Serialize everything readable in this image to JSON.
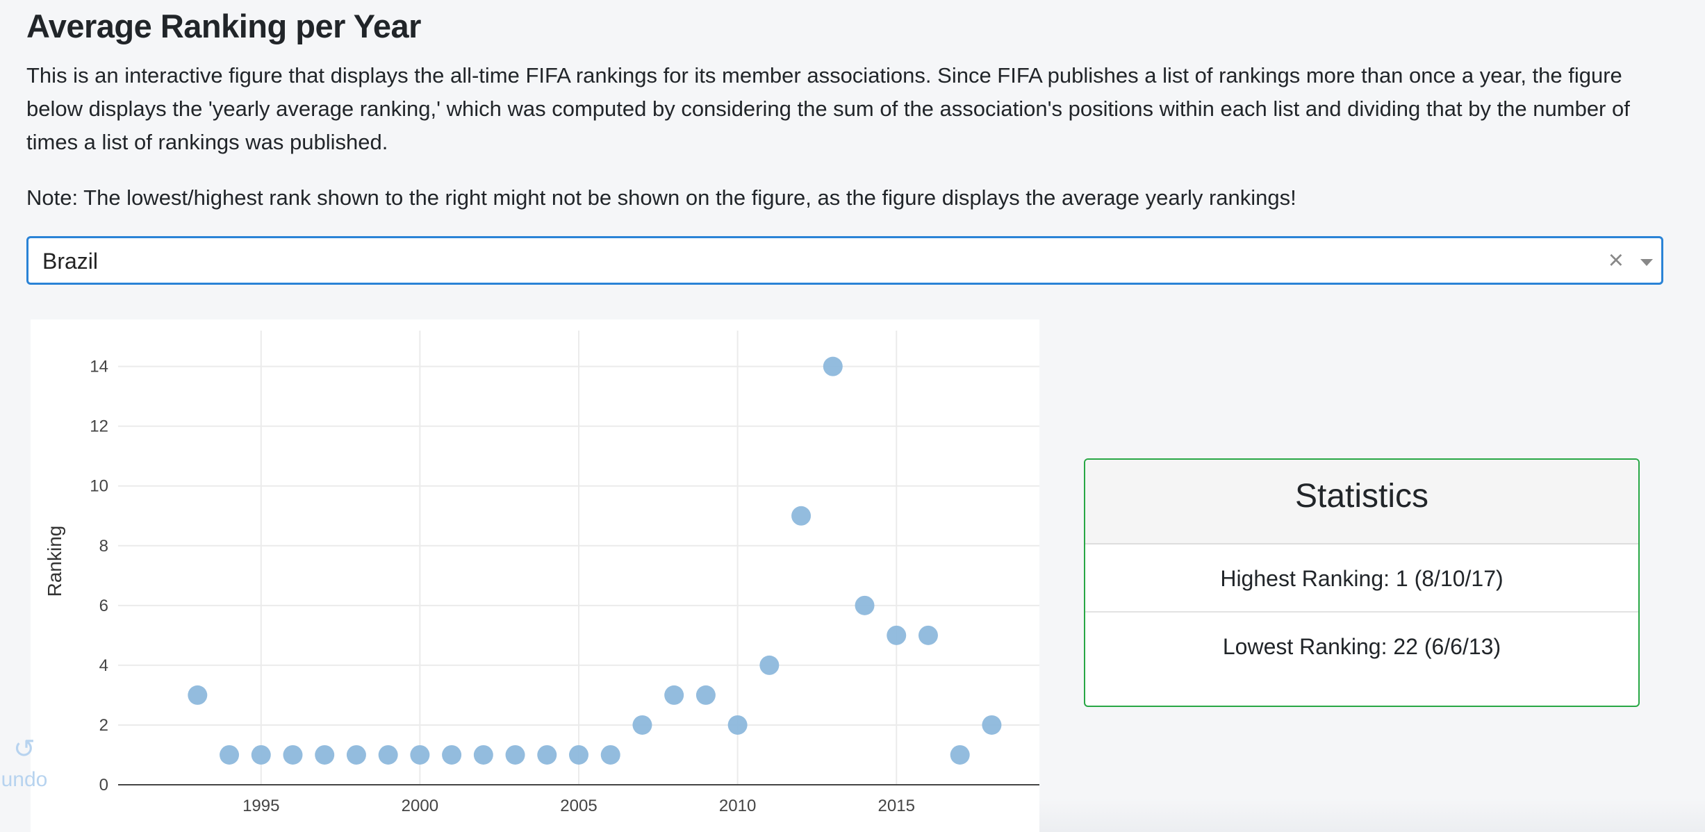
{
  "header": {
    "title": "Average Ranking per Year",
    "intro": "This is an interactive figure that displays the all-time FIFA rankings for its member associations. Since FIFA publishes a list of rankings more than once a year, the figure below displays the 'yearly average ranking,' which was computed by considering the sum of the association's positions within each list and dividing that by the number of times a list of rankings was published.",
    "note": "Note: The lowest/highest rank shown to the right might not be shown on the figure, as the figure displays the average yearly rankings!"
  },
  "selector": {
    "value": "Brazil",
    "clear_icon": "×",
    "arrow_icon": "chevron-down-icon"
  },
  "modebar": {
    "undo_icon": "↻",
    "undo_label": "undo"
  },
  "stats": {
    "title": "Statistics",
    "highest": "Highest Ranking: 1 (8/10/17)",
    "lowest": "Lowest Ranking: 22 (6/6/13)"
  },
  "colors": {
    "accent": "#2a83d6",
    "marker": "#8db8dc",
    "card_border": "#28a745"
  },
  "chart_data": {
    "type": "scatter",
    "title": "",
    "xlabel": "",
    "ylabel": "Ranking",
    "x": [
      1993,
      1994,
      1995,
      1996,
      1997,
      1998,
      1999,
      2000,
      2001,
      2002,
      2003,
      2004,
      2005,
      2006,
      2007,
      2008,
      2009,
      2010,
      2011,
      2012,
      2013,
      2014,
      2015,
      2016,
      2017,
      2018
    ],
    "y": [
      3,
      1,
      1,
      1,
      1,
      1,
      1,
      1,
      1,
      1,
      1,
      1,
      1,
      1,
      2,
      3,
      3,
      2,
      4,
      9,
      14,
      6,
      5,
      5,
      1,
      2
    ],
    "xticks": [
      1995,
      2000,
      2005,
      2010,
      2015
    ],
    "yticks": [
      0,
      2,
      4,
      6,
      8,
      10,
      12,
      14
    ],
    "xlim": [
      1990.5,
      2019.5
    ],
    "ylim": [
      0,
      15.2
    ],
    "grid": true,
    "legend": "none"
  }
}
